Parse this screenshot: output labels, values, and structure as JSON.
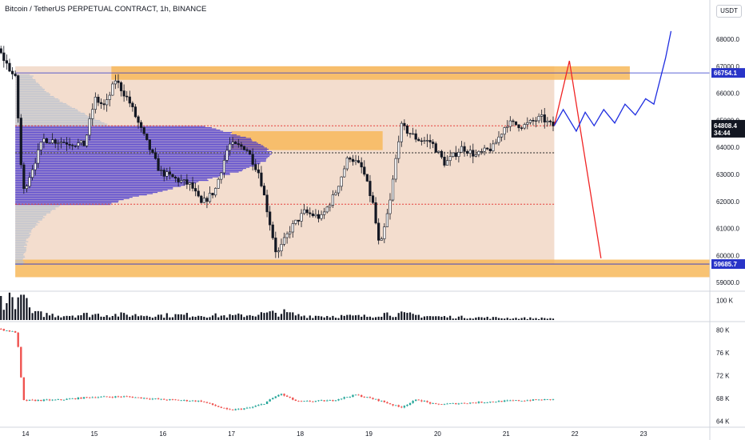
{
  "header": {
    "title": "Bitcoin / TetherUS PERPETUAL CONTRACT, 1h, BINANCE",
    "currency": "USDT"
  },
  "colors": {
    "up": "#26a69a",
    "down": "#ef5350",
    "zone": "#f7b85b",
    "range_fill": "#efd2bd",
    "profile_value_area": "#3f2fd0",
    "profile_outside": "#b9c2cf",
    "projection_up": "#1f2ee0",
    "projection_down": "#f02424",
    "level_line": "#2934c8"
  },
  "chart_data": [
    {
      "type": "candlestick",
      "title": "",
      "x_tick_labels": [
        "14",
        "15",
        "16",
        "17",
        "18",
        "19",
        "20",
        "21",
        "22",
        "23"
      ],
      "y_tick_labels": [
        "59000.0",
        "60000.0",
        "61000.0",
        "62000.0",
        "63000.0",
        "64000.0",
        "65000.0",
        "66000.0",
        "67000.0",
        "68000.0"
      ],
      "ylim": [
        58800,
        68800
      ],
      "grid": false,
      "price_series": [
        {
          "day": 13.6,
          "price": 67800
        },
        {
          "day": 13.9,
          "price": 66500
        },
        {
          "day": 14.0,
          "price": 62300
        },
        {
          "day": 14.3,
          "price": 64300
        },
        {
          "day": 14.6,
          "price": 64200
        },
        {
          "day": 14.9,
          "price": 64100
        },
        {
          "day": 15.05,
          "price": 65800
        },
        {
          "day": 15.2,
          "price": 65500
        },
        {
          "day": 15.35,
          "price": 66500
        },
        {
          "day": 15.55,
          "price": 65700
        },
        {
          "day": 15.75,
          "price": 64500
        },
        {
          "day": 16.0,
          "price": 63100
        },
        {
          "day": 16.25,
          "price": 62800
        },
        {
          "day": 16.45,
          "price": 62600
        },
        {
          "day": 16.6,
          "price": 61900
        },
        {
          "day": 16.8,
          "price": 62400
        },
        {
          "day": 17.0,
          "price": 64100
        },
        {
          "day": 17.25,
          "price": 64000
        },
        {
          "day": 17.45,
          "price": 63000
        },
        {
          "day": 17.7,
          "price": 60000
        },
        {
          "day": 17.9,
          "price": 61000
        },
        {
          "day": 18.1,
          "price": 61600
        },
        {
          "day": 18.35,
          "price": 61400
        },
        {
          "day": 18.55,
          "price": 62300
        },
        {
          "day": 18.75,
          "price": 63700
        },
        {
          "day": 18.95,
          "price": 63200
        },
        {
          "day": 19.1,
          "price": 61900
        },
        {
          "day": 19.2,
          "price": 60200
        },
        {
          "day": 19.35,
          "price": 62000
        },
        {
          "day": 19.5,
          "price": 64800
        },
        {
          "day": 19.75,
          "price": 64300
        },
        {
          "day": 19.95,
          "price": 64200
        },
        {
          "day": 20.15,
          "price": 63400
        },
        {
          "day": 20.4,
          "price": 64000
        },
        {
          "day": 20.6,
          "price": 63700
        },
        {
          "day": 20.85,
          "price": 64000
        },
        {
          "day": 21.05,
          "price": 64900
        },
        {
          "day": 21.3,
          "price": 64800
        },
        {
          "day": 21.55,
          "price": 65100
        },
        {
          "day": 21.7,
          "price": 64808
        }
      ],
      "range_high": 67000,
      "range_low": 59685.7,
      "value_area_high": 64800,
      "point_of_control": 63800,
      "value_area_low": 61900,
      "supply_zones": [
        {
          "start_day": 15.25,
          "end_day": 22.8,
          "low": 66500,
          "high": 67000
        },
        {
          "start_day": 17.0,
          "end_day": 19.2,
          "low": 63900,
          "high": 64600
        }
      ],
      "demand_zones": [
        {
          "start_day": 13.85,
          "end_day": 24.2,
          "low": 59200,
          "high": 59850
        }
      ],
      "levels": [
        {
          "label": "66754.1",
          "price": 66754.1,
          "color": "#2934c8"
        },
        {
          "label": "59685.7",
          "price": 59685.7,
          "color": "#2934c8"
        }
      ],
      "last_price_label": "64808.4",
      "countdown_label": "34:44",
      "projections": {
        "bearish": [
          {
            "day": 21.7,
            "price": 64808
          },
          {
            "day": 21.92,
            "price": 67200
          },
          {
            "day": 22.38,
            "price": 59900
          }
        ],
        "bullish": [
          {
            "day": 21.7,
            "price": 64808
          },
          {
            "day": 21.83,
            "price": 65400
          },
          {
            "day": 22.02,
            "price": 64600
          },
          {
            "day": 22.15,
            "price": 65300
          },
          {
            "day": 22.28,
            "price": 64800
          },
          {
            "day": 22.42,
            "price": 65400
          },
          {
            "day": 22.58,
            "price": 64900
          },
          {
            "day": 22.73,
            "price": 65600
          },
          {
            "day": 22.88,
            "price": 65200
          },
          {
            "day": 23.03,
            "price": 65800
          },
          {
            "day": 23.15,
            "price": 65600
          },
          {
            "day": 23.32,
            "price": 67300
          },
          {
            "day": 23.4,
            "price": 68300
          }
        ]
      }
    },
    {
      "type": "bar",
      "title": "",
      "y_tick_labels": [
        "100 K"
      ],
      "ylim": [
        0,
        140
      ],
      "volume_series": [
        {
          "day": 13.95,
          "value": 130
        },
        {
          "day": 14.1,
          "value": 40
        },
        {
          "day": 14.5,
          "value": 28
        },
        {
          "day": 15.0,
          "value": 34
        },
        {
          "day": 15.5,
          "value": 30
        },
        {
          "day": 16.0,
          "value": 28
        },
        {
          "day": 16.5,
          "value": 30
        },
        {
          "day": 17.0,
          "value": 24
        },
        {
          "day": 17.5,
          "value": 38
        },
        {
          "day": 17.75,
          "value": 45
        },
        {
          "day": 18.0,
          "value": 26
        },
        {
          "day": 18.5,
          "value": 24
        },
        {
          "day": 19.0,
          "value": 22
        },
        {
          "day": 19.2,
          "value": 40
        },
        {
          "day": 19.5,
          "value": 34
        },
        {
          "day": 20.0,
          "value": 20
        },
        {
          "day": 20.5,
          "value": 16
        },
        {
          "day": 21.0,
          "value": 12
        },
        {
          "day": 21.7,
          "value": 10
        }
      ]
    },
    {
      "type": "line",
      "title": "",
      "y_tick_labels": [
        "80 K",
        "76 K",
        "72 K",
        "68 K",
        "64 K"
      ],
      "ylim": [
        63200,
        81200
      ],
      "indicator_series": [
        {
          "day": 13.6,
          "value": 80300
        },
        {
          "day": 13.9,
          "value": 79600
        },
        {
          "day": 13.95,
          "value": 75600
        },
        {
          "day": 14.0,
          "value": 67600
        },
        {
          "day": 14.5,
          "value": 67700
        },
        {
          "day": 15.0,
          "value": 68200
        },
        {
          "day": 15.5,
          "value": 68300
        },
        {
          "day": 16.0,
          "value": 67800
        },
        {
          "day": 16.6,
          "value": 67500
        },
        {
          "day": 17.0,
          "value": 65900
        },
        {
          "day": 17.3,
          "value": 66300
        },
        {
          "day": 17.5,
          "value": 67000
        },
        {
          "day": 17.75,
          "value": 68800
        },
        {
          "day": 18.0,
          "value": 67400
        },
        {
          "day": 18.5,
          "value": 67600
        },
        {
          "day": 18.85,
          "value": 68600
        },
        {
          "day": 19.2,
          "value": 67600
        },
        {
          "day": 19.5,
          "value": 66400
        },
        {
          "day": 19.75,
          "value": 67800
        },
        {
          "day": 20.0,
          "value": 66900
        },
        {
          "day": 20.5,
          "value": 67200
        },
        {
          "day": 21.0,
          "value": 67500
        },
        {
          "day": 21.7,
          "value": 67800
        }
      ]
    }
  ]
}
